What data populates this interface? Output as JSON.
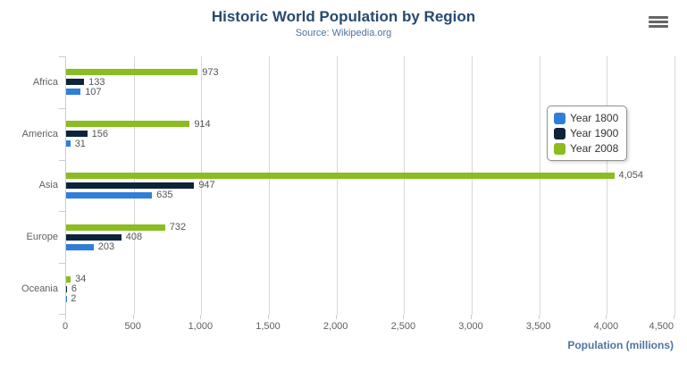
{
  "header": {
    "title": "Historic World Population by Region",
    "subtitle": "Source: Wikipedia.org",
    "menu_icon": "hamburger-menu-icon"
  },
  "colors": {
    "title": "#274b6d",
    "subtitle": "#4d759e",
    "axis_title": "#4d759e",
    "gridline": "#d8d8d8",
    "axis_line": "#c0d0e0",
    "axis_labels": "#606060",
    "legend_border": "#909090"
  },
  "chart_data": {
    "type": "bar",
    "orientation": "horizontal",
    "title": "Historic World Population by Region",
    "subtitle": "Source: Wikipedia.org",
    "categories": [
      "Africa",
      "America",
      "Asia",
      "Europe",
      "Oceania"
    ],
    "series": [
      {
        "name": "Year 1800",
        "color": "#2f7ed8",
        "values": [
          107,
          31,
          635,
          203,
          2
        ],
        "labels": [
          "107",
          "31",
          "635",
          "203",
          "2"
        ]
      },
      {
        "name": "Year 1900",
        "color": "#0d233a",
        "values": [
          133,
          156,
          947,
          408,
          6
        ],
        "labels": [
          "133",
          "156",
          "947",
          "408",
          "6"
        ]
      },
      {
        "name": "Year 2008",
        "color": "#8bbc21",
        "values": [
          973,
          914,
          4054,
          732,
          34
        ],
        "labels": [
          "973",
          "914",
          "4,054",
          "732",
          "34"
        ]
      }
    ],
    "bar_display_order": [
      "Year 2008",
      "Year 1900",
      "Year 1800"
    ],
    "xlabel": "Population (millions)",
    "ylabel": "",
    "xlim": [
      0,
      4500
    ],
    "x_ticks": [
      {
        "value": 0,
        "label": "0"
      },
      {
        "value": 500,
        "label": "500"
      },
      {
        "value": 1000,
        "label": "1,000"
      },
      {
        "value": 1500,
        "label": "1,500"
      },
      {
        "value": 2000,
        "label": "2,000"
      },
      {
        "value": 2500,
        "label": "2,500"
      },
      {
        "value": 3000,
        "label": "3,000"
      },
      {
        "value": 3500,
        "label": "3,500"
      },
      {
        "value": 4000,
        "label": "4,000"
      },
      {
        "value": 4500,
        "label": "4,500"
      }
    ],
    "grid": true,
    "legend_position": "right",
    "data_labels": true
  }
}
